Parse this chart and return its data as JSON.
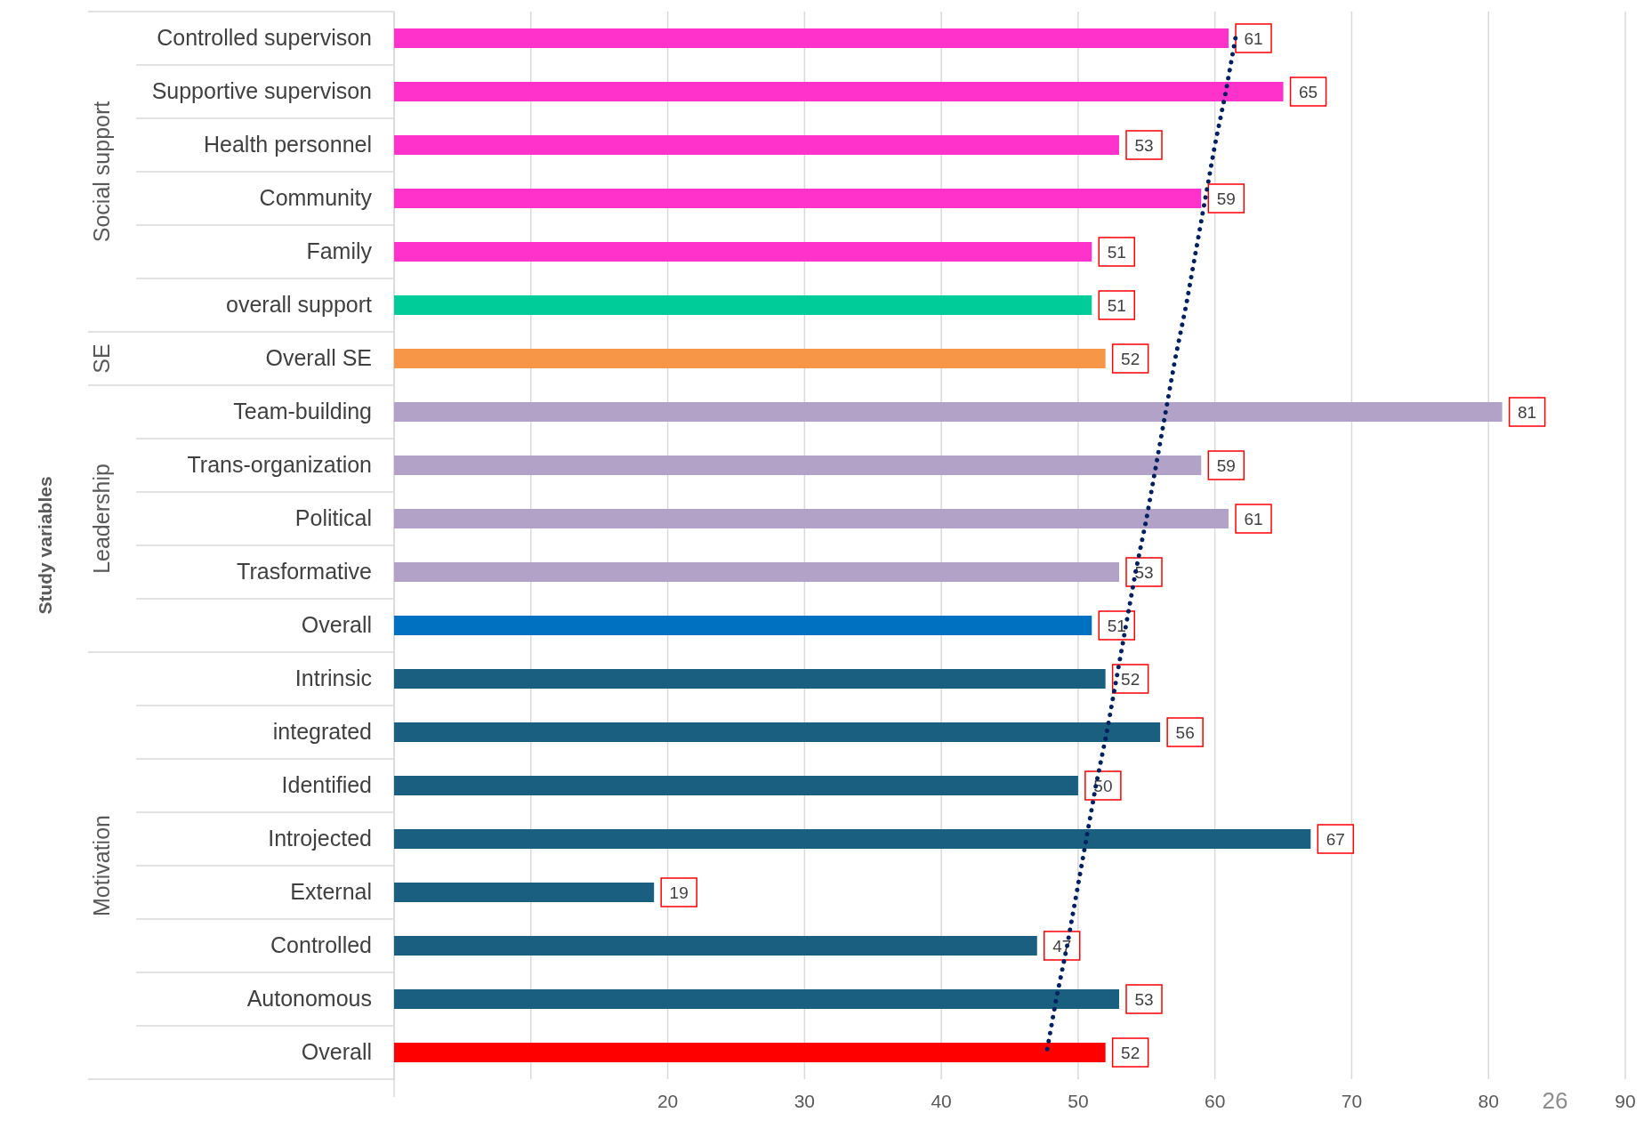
{
  "chart_data": {
    "type": "bar",
    "orientation": "horizontal",
    "categories": [
      "Controlled supervison",
      "Supportive supervison",
      "Health personnel",
      "Community",
      "Family",
      "overall support",
      "Overall SE",
      "Team-building",
      "Trans-organization",
      "Political",
      "Trasformative",
      "Overall",
      "Intrinsic",
      "integrated",
      "Identified",
      "Introjected",
      "External",
      "Controlled",
      "Autonomous",
      "Overall"
    ],
    "series": [
      {
        "values": [
          61,
          65,
          53,
          59,
          51,
          51,
          52,
          81,
          59,
          61,
          53,
          51,
          52,
          56,
          50,
          67,
          19,
          47,
          53,
          52
        ],
        "value_labels": [
          "61",
          "65",
          "53",
          "59",
          "51",
          "51",
          "52",
          "81",
          "59",
          "61",
          "53",
          "51",
          "52",
          "56",
          "50",
          "67",
          "19",
          "47",
          "53",
          "52"
        ],
        "colors": [
          "#ff33cc",
          "#ff33cc",
          "#ff33cc",
          "#ff33cc",
          "#ff33cc",
          "#00cc99",
          "#f79646",
          "#b3a2c7",
          "#b3a2c7",
          "#b3a2c7",
          "#b3a2c7",
          "#0070c0",
          "#1a5f80",
          "#1a5f80",
          "#1a5f80",
          "#1a5f80",
          "#1a5f80",
          "#1a5f80",
          "#1a5f80",
          "#ff0000"
        ]
      },
      {
        "type": "line",
        "color": "#002060",
        "line_style": "dotted",
        "values": [
          61.5,
          60.8,
          60.0,
          59.3,
          58.6,
          57.9,
          57.1,
          56.4,
          55.7,
          55.0,
          54.2,
          53.5,
          52.8,
          52.1,
          51.3,
          50.6,
          49.9,
          49.2,
          48.4,
          47.7
        ]
      }
    ],
    "xlim": [
      0,
      90
    ],
    "xticks": [
      {
        "value": 0,
        "label": null
      },
      {
        "value": 10,
        "label": null
      },
      20,
      30,
      40,
      50,
      60,
      70,
      80,
      90
    ],
    "grid": "x",
    "annotations": [
      "Social support",
      "SE",
      "Leadership",
      "Motivation",
      "26",
      "Study variables"
    ]
  }
}
